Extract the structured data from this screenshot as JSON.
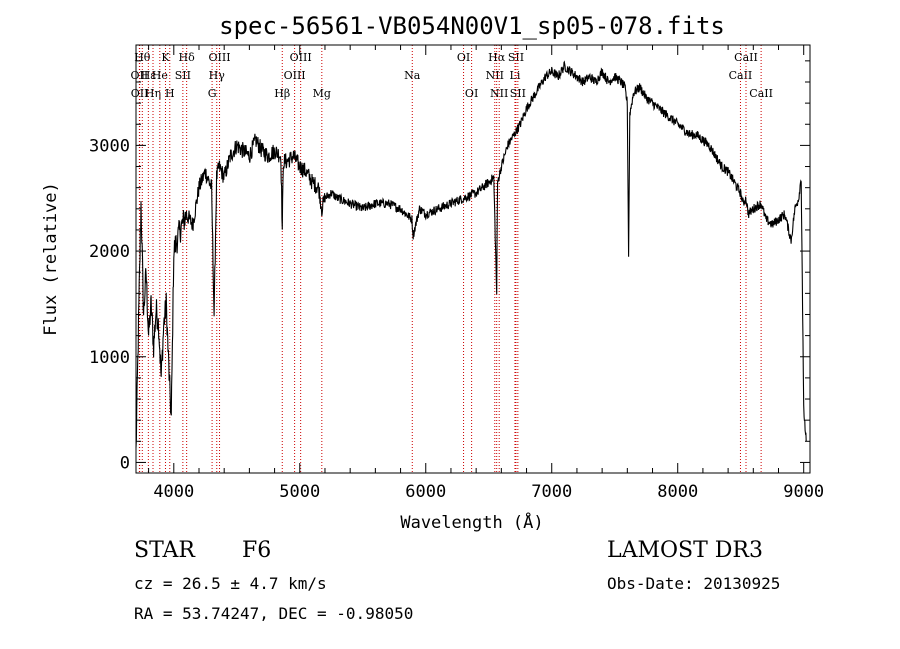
{
  "chart_data": {
    "type": "line",
    "title": "spec-56561-VB054N00V1_sp05-078.fits",
    "xlabel": "Wavelength (Å)",
    "ylabel": "Flux (relative)",
    "xlim": [
      3700,
      9050
    ],
    "ylim": [
      -100,
      3950
    ],
    "xticks": [
      4000,
      5000,
      6000,
      7000,
      8000,
      9000
    ],
    "yticks": [
      0,
      1000,
      2000,
      3000
    ],
    "series": [
      {
        "name": "flux",
        "x": [
          3700,
          3720,
          3740,
          3760,
          3780,
          3800,
          3820,
          3840,
          3860,
          3880,
          3900,
          3920,
          3940,
          3960,
          3980,
          4000,
          4050,
          4100,
          4150,
          4200,
          4250,
          4300,
          4320,
          4340,
          4360,
          4400,
          4450,
          4500,
          4550,
          4600,
          4650,
          4700,
          4750,
          4800,
          4850,
          4861,
          4870,
          4900,
          4950,
          5000,
          5050,
          5100,
          5150,
          5175,
          5200,
          5250,
          5300,
          5400,
          5500,
          5600,
          5700,
          5800,
          5890,
          5900,
          5950,
          6000,
          6100,
          6200,
          6300,
          6400,
          6500,
          6540,
          6563,
          6570,
          6580,
          6600,
          6650,
          6700,
          6750,
          6800,
          6850,
          6900,
          6950,
          7000,
          7050,
          7100,
          7150,
          7200,
          7250,
          7300,
          7350,
          7400,
          7450,
          7500,
          7550,
          7580,
          7600,
          7610,
          7620,
          7650,
          7700,
          7750,
          7800,
          7850,
          7900,
          7950,
          8000,
          8050,
          8100,
          8150,
          8200,
          8250,
          8300,
          8350,
          8400,
          8450,
          8498,
          8520,
          8542,
          8560,
          8600,
          8662,
          8700,
          8750,
          8800,
          8850,
          8900,
          8930,
          8960,
          8980,
          9000,
          9020
        ],
        "y": [
          100,
          1300,
          2450,
          1400,
          1800,
          1200,
          1500,
          1100,
          1450,
          1300,
          800,
          1300,
          1500,
          900,
          400,
          2000,
          2200,
          2350,
          2250,
          2600,
          2750,
          2600,
          1400,
          2700,
          2800,
          2700,
          2900,
          3000,
          2950,
          2900,
          3050,
          2950,
          2900,
          2950,
          2900,
          2200,
          2850,
          2850,
          2900,
          2800,
          2750,
          2650,
          2600,
          2400,
          2500,
          2550,
          2500,
          2450,
          2400,
          2450,
          2450,
          2400,
          2300,
          2150,
          2400,
          2350,
          2400,
          2450,
          2500,
          2550,
          2650,
          2700,
          1600,
          2650,
          2700,
          2800,
          3000,
          3100,
          3200,
          3350,
          3450,
          3550,
          3650,
          3700,
          3650,
          3750,
          3700,
          3650,
          3600,
          3650,
          3600,
          3700,
          3600,
          3650,
          3600,
          3550,
          3400,
          1950,
          3300,
          3500,
          3550,
          3450,
          3400,
          3350,
          3300,
          3250,
          3200,
          3150,
          3100,
          3100,
          3050,
          3000,
          2900,
          2800,
          2750,
          2650,
          2550,
          2450,
          2500,
          2350,
          2400,
          2450,
          2300,
          2250,
          2300,
          2350,
          2100,
          2400,
          2500,
          2700,
          500,
          200
        ]
      }
    ],
    "spectral_lines": [
      {
        "wl": 3750,
        "label": "Hθ",
        "row": 0
      },
      {
        "wl": 3727,
        "label": "OII",
        "row": 1
      },
      {
        "wl": 3729,
        "label": "OII",
        "row": 2
      },
      {
        "wl": 3798,
        "label": "Hε",
        "row": 1
      },
      {
        "wl": 3835,
        "label": "Hη",
        "row": 2
      },
      {
        "wl": 3889,
        "label": "He",
        "row": 1
      },
      {
        "wl": 3934,
        "label": "K",
        "row": 0
      },
      {
        "wl": 3968,
        "label": "H",
        "row": 2
      },
      {
        "wl": 4072,
        "label": "SII",
        "row": 1
      },
      {
        "wl": 4102,
        "label": "Hδ",
        "row": 0
      },
      {
        "wl": 4304,
        "label": "G",
        "row": 2
      },
      {
        "wl": 4341,
        "label": "Hγ",
        "row": 1
      },
      {
        "wl": 4363,
        "label": "OIII",
        "row": 0
      },
      {
        "wl": 4861,
        "label": "Hβ",
        "row": 2
      },
      {
        "wl": 4959,
        "label": "OIII",
        "row": 1
      },
      {
        "wl": 5007,
        "label": "OIII",
        "row": 0
      },
      {
        "wl": 5175,
        "label": "Mg",
        "row": 2
      },
      {
        "wl": 5893,
        "label": "Na",
        "row": 1
      },
      {
        "wl": 6300,
        "label": "OI",
        "row": 0
      },
      {
        "wl": 6364,
        "label": "OI",
        "row": 2
      },
      {
        "wl": 6548,
        "label": "NII",
        "row": 1
      },
      {
        "wl": 6563,
        "label": "Hα",
        "row": 0
      },
      {
        "wl": 6583,
        "label": "NII",
        "row": 2
      },
      {
        "wl": 6708,
        "label": "Li",
        "row": 1
      },
      {
        "wl": 6716,
        "label": "SII",
        "row": 0
      },
      {
        "wl": 6731,
        "label": "SII",
        "row": 2
      },
      {
        "wl": 8498,
        "label": "CaII",
        "row": 1
      },
      {
        "wl": 8542,
        "label": "CaII",
        "row": 0
      },
      {
        "wl": 8662,
        "label": "CaII",
        "row": 2
      }
    ]
  },
  "info": {
    "class": "STAR",
    "subclass": "F6",
    "survey": "LAMOST DR3",
    "cz": "cz = 26.5 ± 4.7 km/s",
    "obs_date": "Obs-Date: 20130925",
    "radec": "RA =  53.74247, DEC =  -0.98050"
  },
  "colors": {
    "line": "#000000",
    "marker": "#cc0000"
  }
}
